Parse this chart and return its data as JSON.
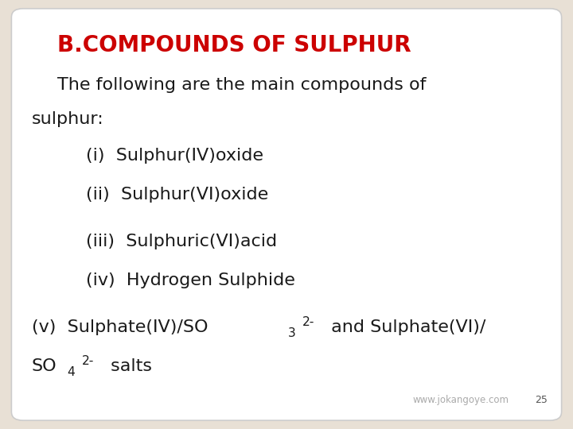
{
  "background_color": "#e8e0d5",
  "card_color": "#ffffff",
  "title": "B.COMPOUNDS OF SULPHUR",
  "title_color": "#cc0000",
  "title_fontsize": 20,
  "body_fontsize": 16,
  "body_color": "#1a1a1a",
  "footer_text": "www.jokangoye.com",
  "footer_page": "25",
  "footer_color": "#aaaaaa",
  "footer_page_color": "#555555"
}
